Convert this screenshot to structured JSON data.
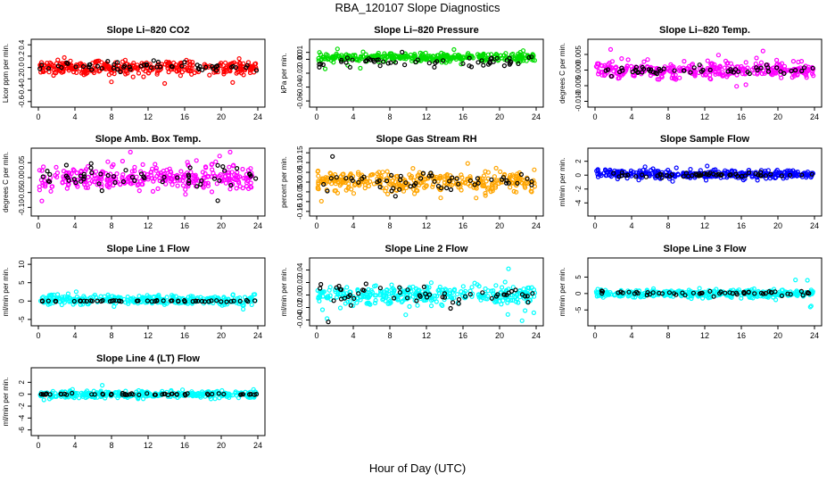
{
  "page": {
    "title": "RBA_120107  Slope Diagnostics",
    "xlabel": "Hour of Day (UTC)"
  },
  "chart_data": [
    {
      "id": "co2",
      "type": "scatter",
      "title": "Slope Li–820 CO2",
      "ylabel": "Licor ppm per min.",
      "xlim": [
        0,
        24
      ],
      "ylim": [
        -0.65,
        0.45
      ],
      "yticks": [
        "-0.6",
        "-0.4",
        "-0.2",
        "0.0",
        "0.2",
        "0.4"
      ],
      "yticks_values": [
        -0.6,
        -0.4,
        -0.2,
        0.0,
        0.2,
        0.4
      ],
      "xticks": [
        0,
        4,
        8,
        12,
        16,
        20,
        24
      ],
      "series": [
        {
          "color": "#ff0000",
          "center": 0.0,
          "spread": 0.12
        },
        {
          "color": "#000000",
          "center": 0.02,
          "spread": 0.08
        }
      ]
    },
    {
      "id": "pressure",
      "type": "scatter",
      "title": "Slope Li–820 Pressure",
      "ylabel": "kPa per min.",
      "xlim": [
        0,
        24
      ],
      "ylim": [
        -0.065,
        0.025
      ],
      "yticks": [
        "-0.06",
        "-0.04",
        "-0.02",
        "0.00",
        "0.01"
      ],
      "yticks_values": [
        -0.06,
        -0.04,
        -0.02,
        0.0,
        0.01
      ],
      "xticks": [
        0,
        4,
        8,
        12,
        16,
        20,
        24
      ],
      "series": [
        {
          "color": "#00dd00",
          "center": 0.003,
          "spread": 0.006
        },
        {
          "color": "#000000",
          "center": -0.004,
          "spread": 0.008
        }
      ]
    },
    {
      "id": "temp",
      "type": "scatter",
      "title": "Slope Li–820 Temp.",
      "ylabel": "degrees C per min.",
      "xlim": [
        0,
        24
      ],
      "ylim": [
        -0.011,
        0.009
      ],
      "yticks": [
        "-0.010",
        "-0.005",
        "0.000",
        "0.005"
      ],
      "yticks_values": [
        -0.01,
        -0.005,
        0.0,
        0.005
      ],
      "xticks": [
        0,
        4,
        8,
        12,
        16,
        20,
        24
      ],
      "series": [
        {
          "color": "#ff00ff",
          "center": 0.0,
          "spread": 0.0025
        },
        {
          "color": "#000000",
          "center": 0.0,
          "spread": 0.0015
        }
      ]
    },
    {
      "id": "ambbox",
      "type": "scatter",
      "title": "Slope Amb. Box Temp.",
      "ylabel": "degrees C per min.",
      "xlim": [
        0,
        24
      ],
      "ylim": [
        -0.12,
        0.09
      ],
      "yticks": [
        "-0.10",
        "-0.05",
        "0.00",
        "0.05"
      ],
      "yticks_values": [
        -0.1,
        -0.05,
        0.0,
        0.05
      ],
      "xticks": [
        0,
        4,
        8,
        12,
        16,
        20,
        24
      ],
      "series": [
        {
          "color": "#ff00ff",
          "center": 0.0,
          "spread": 0.04
        },
        {
          "color": "#000000",
          "center": 0.0,
          "spread": 0.04
        }
      ]
    },
    {
      "id": "rh",
      "type": "scatter",
      "title": "Slope Gas Stream RH",
      "ylabel": "percent per min.",
      "xlim": [
        0,
        24
      ],
      "ylim": [
        -0.16,
        0.16
      ],
      "yticks": [
        "-0.15",
        "-0.10",
        "-0.05",
        "0.00",
        "0.05",
        "0.10",
        "0.15"
      ],
      "yticks_values": [
        -0.15,
        -0.1,
        -0.05,
        0.0,
        0.05,
        0.1,
        0.15
      ],
      "xticks": [
        0,
        4,
        8,
        12,
        16,
        20,
        24
      ],
      "series": [
        {
          "color": "#ffa500",
          "center": 0.0,
          "spread": 0.05
        },
        {
          "color": "#000000",
          "center": 0.0,
          "spread": 0.05
        }
      ]
    },
    {
      "id": "sampleflow",
      "type": "scatter",
      "title": "Slope Sample Flow",
      "ylabel": "ml/min per min.",
      "xlim": [
        0,
        24
      ],
      "ylim": [
        -5.5,
        3.5
      ],
      "yticks": [
        "-4",
        "-2",
        "0",
        "2"
      ],
      "yticks_values": [
        -4,
        -2,
        0,
        2
      ],
      "xticks": [
        0,
        4,
        8,
        12,
        16,
        20,
        24
      ],
      "series": [
        {
          "color": "#0000ff",
          "center": 0.1,
          "spread": 0.6
        },
        {
          "color": "#000000",
          "center": 0.0,
          "spread": 0.3
        }
      ]
    },
    {
      "id": "line1",
      "type": "scatter",
      "title": "Slope Line 1 Flow",
      "ylabel": "ml/min per min.",
      "xlim": [
        0,
        24
      ],
      "ylim": [
        -6,
        11
      ],
      "yticks": [
        "-5",
        "0",
        "5",
        "10"
      ],
      "yticks_values": [
        -5,
        0,
        5,
        10
      ],
      "xticks": [
        0,
        4,
        8,
        12,
        16,
        20,
        24
      ],
      "series": [
        {
          "color": "#00ffff",
          "center": 0.3,
          "spread": 1.2
        },
        {
          "color": "#000000",
          "center": 0.0,
          "spread": 0.2
        }
      ]
    },
    {
      "id": "line2",
      "type": "scatter",
      "title": "Slope Line 2 Flow",
      "ylabel": "ml/min per min.",
      "xlim": [
        0,
        24
      ],
      "ylim": [
        -0.045,
        0.055
      ],
      "yticks": [
        "-0.04",
        "-0.02",
        "0.00",
        "0.02",
        "0.04"
      ],
      "yticks_values": [
        -0.04,
        -0.02,
        0.0,
        0.02,
        0.04
      ],
      "xticks": [
        0,
        4,
        8,
        12,
        16,
        20,
        24
      ],
      "series": [
        {
          "color": "#00ffff",
          "center": 0.0,
          "spread": 0.015
        },
        {
          "color": "#000000",
          "center": 0.0,
          "spread": 0.015
        }
      ]
    },
    {
      "id": "line3",
      "type": "scatter",
      "title": "Slope Line 3 Flow",
      "ylabel": "ml/min per min.",
      "xlim": [
        0,
        24
      ],
      "ylim": [
        -9,
        10
      ],
      "yticks": [
        "-5",
        "0",
        "5"
      ],
      "yticks_values": [
        -5,
        0,
        5
      ],
      "xticks": [
        0,
        4,
        8,
        12,
        16,
        20,
        24
      ],
      "series": [
        {
          "color": "#00ffff",
          "center": 0.0,
          "spread": 1.2
        },
        {
          "color": "#000000",
          "center": 0.2,
          "spread": 0.8
        }
      ]
    },
    {
      "id": "line4",
      "type": "scatter",
      "title": "Slope Line 4 (LT) Flow",
      "ylabel": "ml/min per min.",
      "xlim": [
        0,
        24
      ],
      "ylim": [
        -6.5,
        4
      ],
      "yticks": [
        "-6",
        "-4",
        "-2",
        "0",
        "2"
      ],
      "yticks_values": [
        -6,
        -4,
        -2,
        0,
        2
      ],
      "xticks": [
        0,
        4,
        8,
        12,
        16,
        20,
        24
      ],
      "series": [
        {
          "color": "#00ffff",
          "center": 0.0,
          "spread": 0.6
        },
        {
          "color": "#000000",
          "center": 0.0,
          "spread": 0.15
        }
      ]
    }
  ]
}
